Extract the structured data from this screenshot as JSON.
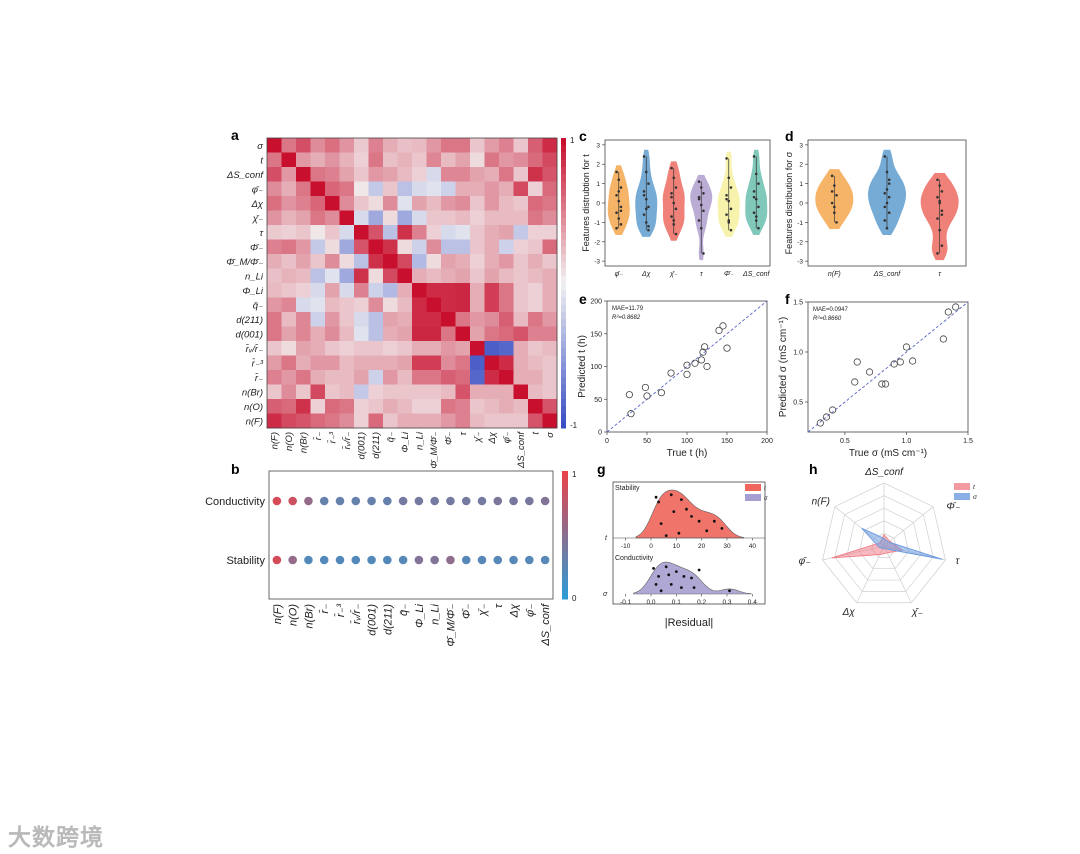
{
  "labels": {
    "a": "a",
    "b": "b",
    "c": "c",
    "d": "d",
    "e": "e",
    "f": "f",
    "g": "g",
    "h": "h"
  },
  "watermark": "大数跨境",
  "heatmap": {
    "row_labels": [
      "σ",
      "t",
      "ΔS_conf",
      "φ̄₋",
      "Δχ",
      "χ̄₋",
      "τ",
      "Φ̄₋",
      "Φ̄_M/Φ̄₋",
      "n_Li",
      "Φ_Li",
      "q̄₋",
      "d(211)",
      "d(001)",
      "r̄ᵥ/r̄₋",
      "r̄₋³",
      "r̄₋",
      "n(Br)",
      "n(O)",
      "n(F)"
    ],
    "col_labels": [
      "n(F)",
      "n(O)",
      "n(Br)",
      "r̄₋",
      "r̄₋³",
      "r̄ᵥ/r̄₋",
      "d(001)",
      "d(211)",
      "q̄₋",
      "Φ_Li",
      "n_Li",
      "Φ̄_M/Φ̄₋",
      "Φ̄₋",
      "τ",
      "χ̄₋",
      "Δχ",
      "φ̄₋",
      "ΔS_conf",
      "t",
      "σ"
    ],
    "colorbar_ticks": [
      "1",
      "-1"
    ],
    "colors": {
      "pos": "#c8102e",
      "neg": "#3a4fc4",
      "mid": "#f2f2f2"
    },
    "matrix": [
      [
        1.0,
        0.55,
        0.72,
        0.45,
        0.58,
        0.42,
        0.18,
        0.5,
        0.3,
        0.22,
        0.25,
        0.4,
        0.55,
        0.55,
        0.2,
        0.38,
        0.5,
        0.2,
        0.65,
        0.88
      ],
      [
        0.55,
        1.0,
        0.4,
        0.3,
        0.42,
        0.28,
        0.15,
        0.55,
        0.22,
        0.28,
        0.2,
        0.48,
        0.25,
        0.35,
        0.1,
        0.55,
        0.4,
        0.45,
        0.6,
        0.75
      ],
      [
        0.72,
        0.4,
        1.0,
        0.55,
        0.5,
        0.35,
        0.2,
        0.4,
        0.35,
        0.25,
        0.15,
        -0.15,
        0.48,
        0.48,
        0.35,
        0.3,
        0.55,
        0.2,
        0.85,
        0.7
      ],
      [
        0.45,
        0.3,
        0.55,
        1.0,
        0.62,
        0.55,
        0.05,
        -0.25,
        0.2,
        -0.3,
        -0.15,
        -0.1,
        -0.2,
        0.3,
        0.3,
        0.4,
        0.3,
        0.75,
        0.15,
        0.6
      ],
      [
        0.58,
        0.42,
        0.5,
        0.62,
        1.0,
        0.45,
        0.2,
        0.1,
        0.45,
        -0.1,
        0.35,
        0.25,
        0.4,
        0.45,
        0.2,
        0.4,
        0.25,
        0.2,
        0.6,
        0.55
      ],
      [
        0.42,
        0.28,
        0.35,
        0.55,
        0.45,
        1.0,
        -0.15,
        -0.45,
        0.1,
        -0.45,
        -0.15,
        0.2,
        0.2,
        0.25,
        0.15,
        0.25,
        0.25,
        0.25,
        0.55,
        0.45
      ],
      [
        0.18,
        0.15,
        0.2,
        0.05,
        0.2,
        -0.15,
        1.0,
        0.7,
        -0.3,
        0.85,
        0.5,
        0.15,
        -0.15,
        -0.1,
        0.2,
        0.3,
        0.35,
        -0.25,
        0.15,
        0.15
      ],
      [
        0.5,
        0.55,
        0.4,
        -0.25,
        0.1,
        -0.45,
        0.7,
        1.0,
        0.85,
        0.1,
        -0.2,
        0.45,
        -0.3,
        -0.3,
        0.2,
        0.3,
        -0.2,
        0.15,
        0.2,
        0.6
      ],
      [
        0.3,
        0.22,
        0.35,
        0.2,
        0.45,
        0.1,
        -0.3,
        0.85,
        1.0,
        0.75,
        -0.35,
        0.1,
        0.35,
        0.3,
        0.15,
        0.3,
        0.4,
        0.2,
        0.3,
        0.2
      ],
      [
        0.22,
        0.28,
        0.25,
        -0.3,
        -0.1,
        -0.45,
        0.85,
        0.1,
        0.75,
        1.0,
        0.3,
        0.25,
        0.3,
        0.35,
        0.2,
        0.35,
        0.25,
        0.2,
        0.25,
        0.3
      ],
      [
        0.25,
        0.2,
        0.15,
        -0.15,
        0.35,
        -0.15,
        0.5,
        -0.2,
        -0.35,
        0.3,
        1.0,
        0.88,
        0.88,
        0.9,
        0.3,
        0.8,
        0.55,
        0.2,
        0.15,
        0.3
      ],
      [
        0.4,
        0.48,
        -0.15,
        -0.1,
        0.25,
        0.2,
        0.15,
        0.45,
        0.1,
        0.25,
        0.88,
        1.0,
        0.88,
        0.9,
        0.3,
        0.8,
        0.55,
        0.2,
        0.15,
        0.3
      ],
      [
        0.55,
        0.25,
        0.48,
        -0.2,
        0.4,
        0.2,
        -0.15,
        -0.3,
        0.35,
        0.3,
        0.88,
        0.88,
        1.0,
        0.55,
        0.4,
        0.45,
        0.65,
        0.25,
        0.55,
        0.4
      ],
      [
        0.55,
        0.35,
        0.48,
        0.3,
        0.45,
        0.25,
        -0.1,
        -0.3,
        0.3,
        0.35,
        0.9,
        0.9,
        0.55,
        1.0,
        0.35,
        0.55,
        0.6,
        0.7,
        0.5,
        0.5
      ],
      [
        0.2,
        0.1,
        0.35,
        0.3,
        0.2,
        0.15,
        0.2,
        0.2,
        0.15,
        0.2,
        0.3,
        0.3,
        0.4,
        0.35,
        1.0,
        -0.9,
        -0.85,
        0.3,
        0.2,
        0.25
      ],
      [
        0.38,
        0.55,
        0.3,
        0.4,
        0.4,
        0.25,
        0.3,
        0.3,
        0.3,
        0.35,
        0.8,
        0.8,
        0.45,
        0.55,
        -0.9,
        1.0,
        0.88,
        0.3,
        0.25,
        0.2
      ],
      [
        0.5,
        0.4,
        0.55,
        0.3,
        0.25,
        0.25,
        0.35,
        -0.2,
        0.4,
        0.25,
        0.55,
        0.55,
        0.65,
        0.6,
        -0.85,
        0.88,
        1.0,
        0.3,
        0.3,
        0.2
      ],
      [
        0.2,
        0.45,
        0.2,
        0.75,
        0.2,
        0.25,
        -0.25,
        0.15,
        0.2,
        0.2,
        0.2,
        0.2,
        0.25,
        0.7,
        0.3,
        0.3,
        0.3,
        1.0,
        0.25,
        0.2
      ],
      [
        0.65,
        0.6,
        0.85,
        0.15,
        0.6,
        0.55,
        0.15,
        0.2,
        0.3,
        0.25,
        0.15,
        0.15,
        0.55,
        0.5,
        0.2,
        0.25,
        0.3,
        0.25,
        1.0,
        0.7
      ],
      [
        0.88,
        0.75,
        0.7,
        0.6,
        0.55,
        0.45,
        0.15,
        0.6,
        0.2,
        0.3,
        0.3,
        0.3,
        0.4,
        0.5,
        0.25,
        0.2,
        0.2,
        0.2,
        0.7,
        1.0
      ]
    ]
  },
  "importance": {
    "rows": [
      "Conductivity",
      "Stability"
    ],
    "cols": [
      "n(F)",
      "n(O)",
      "n(Br)",
      "r̄₋",
      "r̄₋³",
      "r̄ᵥ/r̄₋",
      "d(001)",
      "d(211)",
      "q̄₋",
      "Φ_Li",
      "n_Li",
      "Φ̄_M/Φ̄₋",
      "Φ̄₋",
      "χ̄₋",
      "τ",
      "Δχ",
      "φ̄₋",
      "ΔS_conf"
    ],
    "values": [
      [
        0.9,
        0.85,
        0.55,
        0.3,
        0.3,
        0.3,
        0.3,
        0.3,
        0.38,
        0.38,
        0.38,
        0.38,
        0.38,
        0.38,
        0.42,
        0.4,
        0.4,
        0.45
      ],
      [
        0.9,
        0.55,
        0.2,
        0.2,
        0.2,
        0.2,
        0.2,
        0.2,
        0.22,
        0.45,
        0.45,
        0.52,
        0.22,
        0.22,
        0.22,
        0.22,
        0.22,
        0.22
      ]
    ],
    "colorbar_ticks": [
      "1",
      "0"
    ],
    "colors": {
      "high": "#e8434a",
      "low": "#2e9bd6"
    }
  },
  "violin_c": {
    "ylabel": "Features distrubtion for t",
    "yticks": [
      "3",
      "2",
      "1",
      "0",
      "-1",
      "-2",
      "-3"
    ],
    "categories": [
      "φ̄₋",
      "Δχ",
      "χ̄₋",
      "τ",
      "Φ̄₋",
      "ΔS_conf"
    ],
    "colors": [
      "#f5b061",
      "#6fa6d3",
      "#ee7a72",
      "#b6a8d3",
      "#f8f2a8",
      "#79c5b6"
    ],
    "points": [
      [
        1.6,
        1.2,
        0.8,
        0.4,
        0.1,
        -0.2,
        -0.5,
        -0.8,
        -1.1,
        -1.3,
        0.6,
        -0.4
      ],
      [
        2.4,
        1.6,
        1.0,
        0.6,
        0.2,
        -0.2,
        -0.6,
        -1.0,
        -1.4,
        0.4,
        -0.3,
        -1.2
      ],
      [
        1.8,
        1.3,
        0.8,
        0.3,
        0,
        -0.3,
        -0.7,
        -1.1,
        -1.6,
        0.5,
        -0.9
      ],
      [
        1.1,
        0.8,
        0.5,
        0.2,
        -0.1,
        -0.4,
        -0.9,
        -1.3,
        -2.6,
        0.3
      ],
      [
        2.3,
        1.3,
        0.8,
        0.4,
        0.1,
        -0.3,
        -0.6,
        -1.0,
        -1.4,
        0.2,
        -0.9
      ],
      [
        2.4,
        1.5,
        1.0,
        0.6,
        0.2,
        -0.2,
        -0.5,
        -0.9,
        -1.3,
        0.3,
        -0.7
      ]
    ]
  },
  "violin_d": {
    "ylabel": "Features distribution for σ",
    "yticks": [
      "3",
      "2",
      "1",
      "0",
      "-1",
      "-2",
      "-3"
    ],
    "categories": [
      "n(F)",
      "ΔS_conf",
      "τ"
    ],
    "colors": [
      "#f5b061",
      "#6fa6d3",
      "#ee7a72"
    ],
    "points": [
      [
        1.4,
        0.9,
        0.4,
        0,
        -0.5,
        -1.0,
        0.6,
        -0.2
      ],
      [
        2.4,
        1.6,
        1.0,
        0.5,
        0,
        -0.5,
        -0.9,
        -1.3,
        0.3,
        -0.2,
        0.7,
        1.2
      ],
      [
        1.2,
        0.9,
        0.6,
        0.3,
        0,
        -0.4,
        -0.8,
        -1.4,
        -2.2,
        -2.6,
        0.1,
        -0.6
      ]
    ]
  },
  "scatter_e": {
    "xlabel": "True  t (h)",
    "ylabel": "Predicted  t (h)",
    "xlim": [
      0,
      200
    ],
    "ylim": [
      0,
      200
    ],
    "xticks": [
      "0",
      "50",
      "100",
      "150",
      "200"
    ],
    "yticks": [
      "0",
      "50",
      "100",
      "150",
      "200"
    ],
    "annotation": [
      "MAE=11.79",
      "R²=0.8682"
    ],
    "points": [
      [
        30,
        28
      ],
      [
        28,
        57
      ],
      [
        48,
        68
      ],
      [
        50,
        55
      ],
      [
        68,
        60
      ],
      [
        80,
        90
      ],
      [
        100,
        88
      ],
      [
        100,
        102
      ],
      [
        110,
        105
      ],
      [
        118,
        110
      ],
      [
        120,
        122
      ],
      [
        122,
        130
      ],
      [
        125,
        100
      ],
      [
        140,
        155
      ],
      [
        145,
        162
      ],
      [
        150,
        128
      ]
    ]
  },
  "scatter_f": {
    "xlabel": "True  σ (mS cm⁻¹)",
    "ylabel": "Predicted  σ (mS cm⁻¹)",
    "xlim": [
      0.2,
      1.5
    ],
    "ylim": [
      0.2,
      1.5
    ],
    "xticks": [
      "0.5",
      "1.0",
      "1.5"
    ],
    "yticks": [
      "0.5",
      "1.0",
      "1.5"
    ],
    "annotation": [
      "MAE=0.0947",
      "R²=0.8660"
    ],
    "points": [
      [
        0.3,
        0.29
      ],
      [
        0.35,
        0.35
      ],
      [
        0.4,
        0.42
      ],
      [
        0.58,
        0.7
      ],
      [
        0.6,
        0.9
      ],
      [
        0.7,
        0.8
      ],
      [
        0.8,
        0.68
      ],
      [
        0.83,
        0.68
      ],
      [
        0.9,
        0.88
      ],
      [
        0.95,
        0.9
      ],
      [
        1.0,
        1.05
      ],
      [
        1.05,
        0.91
      ],
      [
        1.3,
        1.13
      ],
      [
        1.34,
        1.4
      ],
      [
        1.4,
        1.45
      ]
    ]
  },
  "kde_g": {
    "xlabel": "|Residual|",
    "top": {
      "label": "Stability",
      "series": "t",
      "xticks": [
        "-10",
        "0",
        "10",
        "20",
        "30",
        "40"
      ],
      "xlim": [
        -15,
        45
      ],
      "color": "#f0655c",
      "points": [
        [
          3,
          0.75
        ],
        [
          4,
          0.3
        ],
        [
          6,
          0.05
        ],
        [
          8,
          0.9
        ],
        [
          9,
          0.55
        ],
        [
          12,
          0.8
        ],
        [
          14,
          0.6
        ],
        [
          16,
          0.45
        ],
        [
          19,
          0.35
        ],
        [
          22,
          0.15
        ],
        [
          25,
          0.35
        ],
        [
          28,
          0.2
        ],
        [
          2,
          0.85
        ],
        [
          11,
          0.1
        ]
      ]
    },
    "bottom": {
      "label": "Conductivity",
      "series": "σ",
      "xticks": [
        "-0.1",
        "0.0",
        "0.1",
        "0.2",
        "0.3",
        "0.4"
      ],
      "xlim": [
        -0.15,
        0.45
      ],
      "color": "#a79fd1",
      "points": [
        [
          0.01,
          0.8
        ],
        [
          0.03,
          0.55
        ],
        [
          0.04,
          0.1
        ],
        [
          0.06,
          0.85
        ],
        [
          0.07,
          0.6
        ],
        [
          0.08,
          0.3
        ],
        [
          0.1,
          0.7
        ],
        [
          0.12,
          0.2
        ],
        [
          0.13,
          0.55
        ],
        [
          0.16,
          0.5
        ],
        [
          0.17,
          0.2
        ],
        [
          0.19,
          0.75
        ],
        [
          0.31,
          0.1
        ],
        [
          0.02,
          0.3
        ]
      ]
    }
  },
  "radar_h": {
    "axes": [
      "ΔS_conf",
      "Φ̄₋",
      "τ",
      "χ̄₋",
      "Δχ",
      "φ̄₋",
      "n(F)"
    ],
    "series": [
      {
        "name": "t",
        "color": "#f0808a",
        "values": [
          0.18,
          0.12,
          0.3,
          0.12,
          0.15,
          0.85,
          0.08
        ]
      },
      {
        "name": "σ",
        "color": "#6b9be0",
        "values": [
          0.12,
          0.1,
          0.95,
          0.05,
          0.05,
          0.08,
          0.45
        ]
      }
    ],
    "legend": [
      "t",
      "σ"
    ]
  },
  "chart_data": [
    {
      "panel": "a",
      "type": "heatmap",
      "title": "",
      "colorbar": [
        -1,
        1
      ]
    },
    {
      "panel": "b",
      "type": "heatmap",
      "title": "",
      "colorbar": [
        0,
        1
      ]
    },
    {
      "panel": "c",
      "type": "violin",
      "ylabel": "Features distrubtion for t",
      "ylim": [
        -3,
        3
      ]
    },
    {
      "panel": "d",
      "type": "violin",
      "ylabel": "Features distribution for σ",
      "ylim": [
        -3,
        3
      ]
    },
    {
      "panel": "e",
      "type": "scatter",
      "xlabel": "True t (h)",
      "ylabel": "Predicted t (h)",
      "xlim": [
        0,
        200
      ],
      "ylim": [
        0,
        200
      ],
      "mae": 11.79,
      "r2": 0.8682
    },
    {
      "panel": "f",
      "type": "scatter",
      "xlabel": "True σ (mS cm⁻¹)",
      "ylabel": "Predicted σ (mS cm⁻¹)",
      "xlim": [
        0.2,
        1.5
      ],
      "ylim": [
        0.2,
        1.5
      ],
      "mae": 0.0947,
      "r2": 0.866
    },
    {
      "panel": "g",
      "type": "area",
      "xlabel": "|Residual|",
      "series": [
        "t",
        "σ"
      ]
    },
    {
      "panel": "h",
      "type": "radar",
      "series": [
        "t",
        "σ"
      ]
    }
  ]
}
